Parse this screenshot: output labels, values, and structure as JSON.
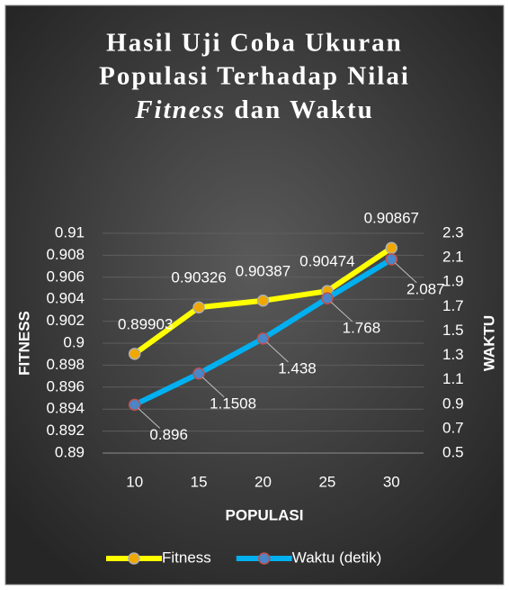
{
  "chart_data": {
    "type": "line",
    "title": [
      "Hasil Uji Coba Ukuran",
      "Populasi Terhadap Nilai",
      "Fitness",
      "dan Waktu"
    ],
    "x_label": "POPULASI",
    "y_label": "FITNESS",
    "y2_label": "WAKTU",
    "categories": [
      10,
      15,
      20,
      25,
      30
    ],
    "series": [
      {
        "name": "Fitness",
        "color": "#ffff00",
        "marker_color": "#f0a800",
        "values": [
          0.89903,
          0.90326,
          0.90387,
          0.90474,
          0.90867
        ]
      },
      {
        "name": "Waktu (detik)",
        "color": "#00b0f0",
        "marker_color": "#4a86c8",
        "axis": "y2",
        "values": [
          0.896,
          1.1508,
          1.438,
          1.768,
          2.087
        ]
      }
    ],
    "ylim": [
      0.89,
      0.91
    ],
    "yticks": [
      0.89,
      0.892,
      0.894,
      0.896,
      0.898,
      0.9,
      0.902,
      0.904,
      0.906,
      0.908,
      0.91
    ],
    "y2lim": [
      0.5,
      2.3
    ],
    "y2ticks": [
      0.5,
      0.7,
      0.9,
      1.1,
      1.3,
      1.5,
      1.7,
      1.9,
      2.1,
      2.3
    ],
    "grid": true,
    "legend": "bottom"
  }
}
